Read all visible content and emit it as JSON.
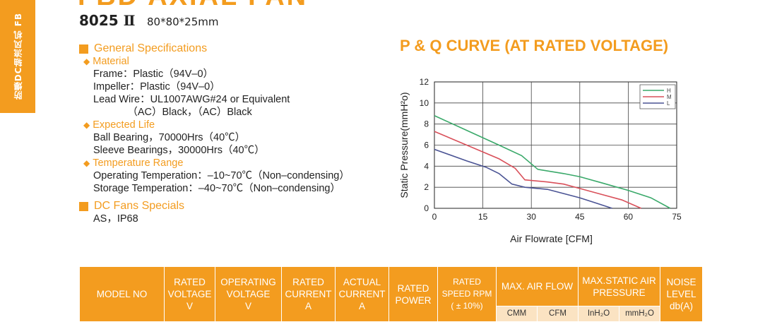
{
  "header": {
    "side_tab_text": "防爆DC轴流风机 FB",
    "series_title": "FBD AXIAL FAN",
    "model_code": "8025",
    "model_roman": "Ⅱ",
    "dimensions": "80*80*25mm"
  },
  "specs": {
    "general_title": "General Specifications",
    "material_title": "Material",
    "material_lines": [
      "Frame：Plastic（94V–0）",
      "Impeller：Plastic（94V–0）",
      "Lead Wire：UL1007AWG#24 or Equivalent",
      "            （AC）Black，（AC）Black"
    ],
    "life_title": "Expected Life",
    "life_lines": [
      "Ball Bearing，70000Hrs（40℃）",
      "Sleeve Bearings，30000Hrs（40℃）"
    ],
    "temp_title": "Temperature Range",
    "temp_lines": [
      "Operating Temperation：–10~70℃（Non–condensing）",
      "Storage Temperation：–40~70℃（Non–condensing）"
    ],
    "dc_title": "DC Fans Specials",
    "dc_lines": [
      "AS，IP68"
    ]
  },
  "chart_title": "P & Q CURVE (AT RATED VOLTAGE)",
  "chart_data": {
    "type": "line",
    "title": "P & Q CURVE (AT RATED VOLTAGE)",
    "xlabel": "Air Flowrate  [CFM]",
    "ylabel": "Static Pressure(mmH²o)",
    "xlim": [
      0,
      75
    ],
    "ylim": [
      0,
      12
    ],
    "xticks": [
      0,
      15,
      30,
      45,
      60,
      75
    ],
    "yticks": [
      0,
      2,
      4,
      6,
      8,
      10,
      12
    ],
    "legend_position": "top-right",
    "grid": true,
    "series": [
      {
        "name": "H",
        "color": "#3aa96a",
        "x": [
          0,
          10,
          20,
          27,
          32,
          40,
          45,
          52,
          60,
          67,
          73
        ],
        "y": [
          8.8,
          7.4,
          6.0,
          5.0,
          3.7,
          3.3,
          3.0,
          2.4,
          1.7,
          1.0,
          0
        ]
      },
      {
        "name": "M",
        "color": "#d9505a",
        "x": [
          0,
          10,
          20,
          25,
          28,
          35,
          40,
          46,
          52,
          58,
          64
        ],
        "y": [
          7.3,
          6.0,
          4.7,
          3.8,
          2.7,
          2.5,
          2.3,
          1.8,
          1.3,
          0.8,
          0
        ]
      },
      {
        "name": "L",
        "color": "#4a5394",
        "x": [
          0,
          10,
          16,
          20,
          24,
          28,
          35,
          40,
          45,
          50,
          55
        ],
        "y": [
          5.6,
          4.5,
          3.9,
          3.3,
          2.3,
          2.0,
          1.8,
          1.4,
          1.0,
          0.5,
          0
        ]
      }
    ]
  },
  "table": {
    "headers": [
      {
        "label": "MODEL NO",
        "sub": ""
      },
      {
        "label": "RATED VOLTAGE",
        "sub": "V"
      },
      {
        "label": "OPERATING VOLTAGE",
        "sub": "V"
      },
      {
        "label": "RATED CURRENT",
        "sub": "A"
      },
      {
        "label": "ACTUAL CURRENT",
        "sub": "A"
      },
      {
        "label": "RATED POWER",
        "sub": ""
      },
      {
        "label": "RATED SPEED RPM",
        "sub": "( ± 10%)"
      },
      {
        "label": "MAX. AIR FLOW",
        "sub": ""
      },
      {
        "label": "MAX.STATIC AIR PRESSURE",
        "sub": ""
      },
      {
        "label": "NOISE LEVEL",
        "sub": "db(A)"
      }
    ],
    "units": {
      "cmm": "CMM",
      "cfm": "CFM",
      "inh2o": "InH₂O",
      "mmh2o": "mmH₂O"
    }
  }
}
